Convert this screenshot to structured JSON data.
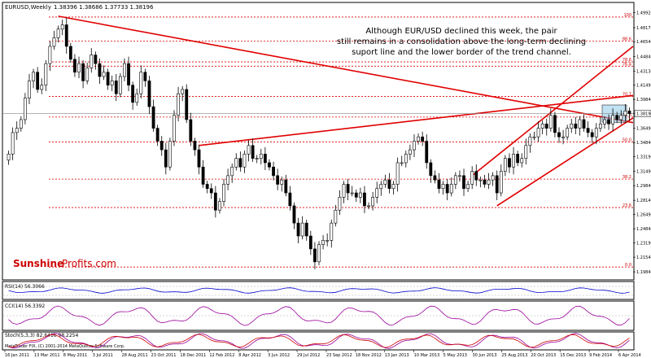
{
  "chart_data": {
    "type": "candlestick",
    "title": "EURUSD,Weekly",
    "ohlc": "1.38396 1.38686 1.37733 1.38196",
    "annotation": [
      "Although EUR/USD declined this week, the pair",
      "still remains in a consolidation above the long-term declining",
      "suport line and the lower border of the trend channel."
    ],
    "brand": {
      "part1": "Sunshine",
      "part2": "Profits.com",
      "color1": "#cc0000",
      "color2": "#cc0000"
    },
    "ylim": [
      1.19,
      1.51
    ],
    "y_ticks": [
      "1.49920",
      "1.48170",
      "1.46540",
      "1.44840",
      "1.43130",
      "1.41490",
      "1.39840",
      "1.38196",
      "1.36490",
      "1.34840",
      "1.33190",
      "1.31490",
      "1.29840",
      "1.28140",
      "1.26490",
      "1.24840",
      "1.23190",
      "1.21540",
      "1.19840"
    ],
    "current_price": "1.38196",
    "x_labels": [
      "16 Jan 2011",
      "13 Mar 2011",
      "8 May 2011",
      "3 Jul 2011",
      "28 Aug 2011",
      "23 Oct 2011",
      "18 Dec 2011",
      "12 Feb 2012",
      "8 Apr 2012",
      "3 Jun 2012",
      "29 Jul 2012",
      "23 Sep 2012",
      "18 Nov 2012",
      "13 Jan 2013",
      "10 Mar 2013",
      "5 May 2013",
      "30 Jun 2013",
      "25 Aug 2013",
      "20 Oct 2013",
      "15 Dec 2013",
      "9 Feb 2014",
      "6 Apr 2014"
    ],
    "fibonacci": [
      {
        "label": "100",
        "value": 1.494
      },
      {
        "label": "88.6",
        "value": 1.466
      },
      {
        "label": "78.6",
        "value": 1.442
      },
      {
        "label": "76.4",
        "value": 1.437
      },
      {
        "label": "70.7",
        "value": 1.402
      },
      {
        "label": "61.8",
        "value": 1.378
      },
      {
        "label": "50.0",
        "value": 1.349
      },
      {
        "label": "38.2",
        "value": 1.306
      },
      {
        "label": "23.6",
        "value": 1.273
      },
      {
        "label": "0.0",
        "value": 1.204
      }
    ],
    "closes": [
      1.335,
      1.36,
      1.365,
      1.375,
      1.4,
      1.42,
      1.43,
      1.41,
      1.415,
      1.44,
      1.46,
      1.47,
      1.48,
      1.485,
      1.46,
      1.445,
      1.43,
      1.44,
      1.42,
      1.435,
      1.45,
      1.44,
      1.425,
      1.43,
      1.415,
      1.42,
      1.405,
      1.425,
      1.44,
      1.415,
      1.395,
      1.405,
      1.43,
      1.42,
      1.39,
      1.365,
      1.35,
      1.34,
      1.32,
      1.35,
      1.38,
      1.405,
      1.41,
      1.375,
      1.35,
      1.34,
      1.32,
      1.3,
      1.295,
      1.29,
      1.27,
      1.28,
      1.3,
      1.31,
      1.32,
      1.33,
      1.32,
      1.335,
      1.345,
      1.33,
      1.33,
      1.335,
      1.325,
      1.32,
      1.31,
      1.3,
      1.305,
      1.29,
      1.275,
      1.255,
      1.24,
      1.255,
      1.24,
      1.225,
      1.21,
      1.23,
      1.235,
      1.235,
      1.255,
      1.27,
      1.285,
      1.3,
      1.29,
      1.29,
      1.285,
      1.29,
      1.275,
      1.275,
      1.285,
      1.295,
      1.3,
      1.305,
      1.295,
      1.3,
      1.325,
      1.325,
      1.335,
      1.34,
      1.35,
      1.355,
      1.35,
      1.325,
      1.31,
      1.305,
      1.295,
      1.3,
      1.29,
      1.3,
      1.31,
      1.31,
      1.295,
      1.3,
      1.315,
      1.305,
      1.305,
      1.3,
      1.305,
      1.31,
      1.29,
      1.315,
      1.33,
      1.32,
      1.335,
      1.325,
      1.33,
      1.345,
      1.355,
      1.355,
      1.365,
      1.37,
      1.365,
      1.38,
      1.36,
      1.355,
      1.355,
      1.365,
      1.37,
      1.365,
      1.375,
      1.365,
      1.36,
      1.355,
      1.365,
      1.37,
      1.375,
      1.37,
      1.38,
      1.375,
      1.38,
      1.385,
      1.382
    ],
    "indicators": [
      {
        "label": "RSI(14) 56.3066",
        "levels": [
          "100",
          "70",
          "30",
          "0"
        ]
      },
      {
        "label": "CCI(14) 56.3392",
        "levels": [
          "228.733",
          "0",
          "-302.5718"
        ]
      },
      {
        "label": "Stoch(5,3,3) 82.6416 98.2254",
        "levels": [
          "100",
          "0"
        ]
      }
    ],
    "footer": "MetaTrader FIX, (C) 2001-2014 MetaQuotes Software Corp."
  }
}
